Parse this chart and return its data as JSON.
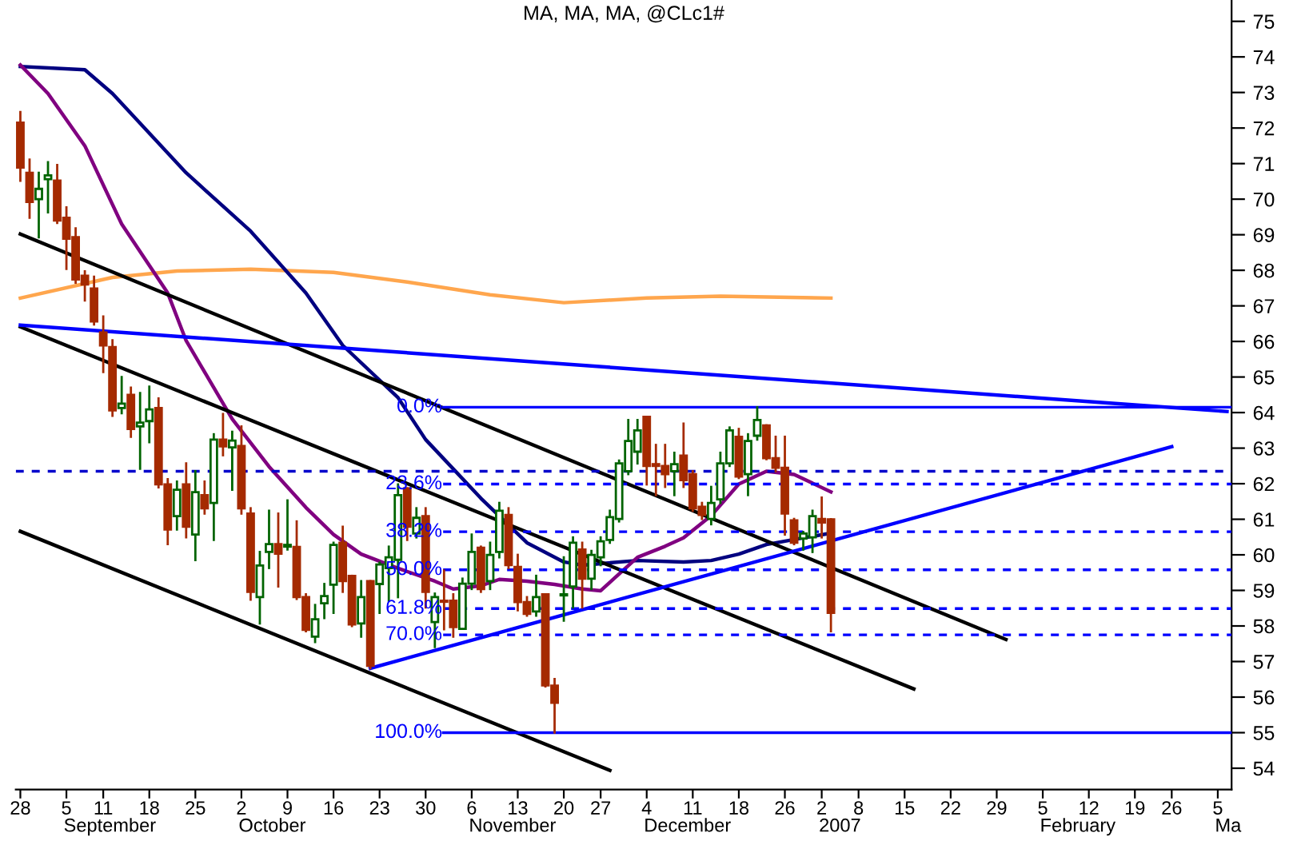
{
  "chart_data": {
    "type": "candlestick",
    "title": "MA, MA, MA, @CLc1#",
    "categories": [
      "28",
      null,
      null,
      null,
      null,
      "5",
      null,
      null,
      null,
      "11",
      null,
      null,
      null,
      null,
      "18",
      null,
      null,
      null,
      null,
      "25",
      null,
      null,
      null,
      null,
      "2",
      null,
      null,
      null,
      null,
      "9",
      null,
      null,
      null,
      null,
      "16",
      null,
      null,
      null,
      null,
      "23",
      null,
      null,
      null,
      null,
      "30",
      null,
      null,
      null,
      null,
      "6",
      null,
      null,
      null,
      null,
      "13",
      null,
      null,
      null,
      null,
      "20",
      null,
      null,
      null,
      "27",
      null,
      null,
      null,
      null,
      "4",
      null,
      null,
      null,
      null,
      "11",
      null,
      null,
      null,
      null,
      "18",
      null,
      null,
      null,
      null,
      "26",
      null,
      null,
      null,
      "2",
      null,
      null,
      null,
      "8",
      null,
      null,
      null,
      null,
      "15",
      null,
      null,
      null,
      null,
      "22",
      null,
      null,
      null,
      null,
      "29",
      null,
      null,
      null,
      null,
      "5",
      null,
      null,
      null,
      null,
      "12",
      null,
      null,
      null,
      null,
      "19",
      null,
      null,
      null,
      "26",
      null,
      null,
      null,
      null,
      "5",
      null
    ],
    "ohlc": [
      [
        72.15,
        72.45,
        70.52,
        70.89
      ],
      [
        70.74,
        71.11,
        69.48,
        69.92
      ],
      [
        70.0,
        70.74,
        68.93,
        70.29
      ],
      [
        70.56,
        71.04,
        69.63,
        70.67
      ],
      [
        70.52,
        70.96,
        69.33,
        69.4
      ],
      [
        69.48,
        69.77,
        68.04,
        68.89
      ],
      [
        68.93,
        69.18,
        67.65,
        67.74
      ],
      [
        67.85,
        67.97,
        67.15,
        67.6
      ],
      [
        67.49,
        67.82,
        66.48,
        66.56
      ],
      [
        66.25,
        66.7,
        65.14,
        65.89
      ],
      [
        65.84,
        66.03,
        63.91,
        64.06
      ],
      [
        64.13,
        65.0,
        63.98,
        64.25
      ],
      [
        64.5,
        64.7,
        63.32,
        63.54
      ],
      [
        63.61,
        64.55,
        62.42,
        63.72
      ],
      [
        63.76,
        64.73,
        63.17,
        64.09
      ],
      [
        64.13,
        64.4,
        61.9,
        61.98
      ],
      [
        61.98,
        62.13,
        60.3,
        60.71
      ],
      [
        61.09,
        62.06,
        60.71,
        61.83
      ],
      [
        61.98,
        62.57,
        60.49,
        60.79
      ],
      [
        60.57,
        62.35,
        59.85,
        61.76
      ],
      [
        61.68,
        62.06,
        61.16,
        61.31
      ],
      [
        61.46,
        63.39,
        60.42,
        63.24
      ],
      [
        63.24,
        63.96,
        62.8,
        63.05
      ],
      [
        63.02,
        63.46,
        61.83,
        63.21
      ],
      [
        63.06,
        63.61,
        61.16,
        61.31
      ],
      [
        61.16,
        61.31,
        58.74,
        58.96
      ],
      [
        58.81,
        60.08,
        58.07,
        59.7
      ],
      [
        60.08,
        61.24,
        59.63,
        60.3
      ],
      [
        60.3,
        61.16,
        59.11,
        60.03
      ],
      [
        60.23,
        61.53,
        60.15,
        60.28
      ],
      [
        60.22,
        60.94,
        58.76,
        58.81
      ],
      [
        58.81,
        58.89,
        57.85,
        57.89
      ],
      [
        57.7,
        58.59,
        57.55,
        58.19
      ],
      [
        58.64,
        59.18,
        58.22,
        58.84
      ],
      [
        59.16,
        60.34,
        58.37,
        60.28
      ],
      [
        60.34,
        60.79,
        58.96,
        59.26
      ],
      [
        59.41,
        59.41,
        58.0,
        58.04
      ],
      [
        58.07,
        59.26,
        57.7,
        58.81
      ],
      [
        59.26,
        59.26,
        56.81,
        56.88
      ],
      [
        59.18,
        59.78,
        58.37,
        59.73
      ],
      [
        59.63,
        60.23,
        58.71,
        59.93
      ],
      [
        59.86,
        61.98,
        58.81,
        61.68
      ],
      [
        61.87,
        61.87,
        60.42,
        60.79
      ],
      [
        60.6,
        61.31,
        60.49,
        61.04
      ],
      [
        61.09,
        61.31,
        58.52,
        58.96
      ],
      [
        58.11,
        58.91,
        57.41,
        58.81
      ],
      [
        58.71,
        59.56,
        57.91,
        58.68
      ],
      [
        58.71,
        58.89,
        57.7,
        57.97
      ],
      [
        57.92,
        59.33,
        57.92,
        59.19
      ],
      [
        59.19,
        60.57,
        59.04,
        60.08
      ],
      [
        60.2,
        60.23,
        58.96,
        59.04
      ],
      [
        59.26,
        60.34,
        59.04,
        60.0
      ],
      [
        60.08,
        61.46,
        59.93,
        61.24
      ],
      [
        61.12,
        61.31,
        59.63,
        59.71
      ],
      [
        59.66,
        60.0,
        58.44,
        58.67
      ],
      [
        58.67,
        58.81,
        58.29,
        58.34
      ],
      [
        58.41,
        59.41,
        58.29,
        58.81
      ],
      [
        58.89,
        58.89,
        56.3,
        56.33
      ],
      [
        56.32,
        56.51,
        55.0,
        55.84
      ],
      [
        58.86,
        59.93,
        58.15,
        58.89
      ],
      [
        59.11,
        60.49,
        58.52,
        60.34
      ],
      [
        60.15,
        60.34,
        58.52,
        59.33
      ],
      [
        59.33,
        60.11,
        59.04,
        60.0
      ],
      [
        59.93,
        60.49,
        59.71,
        60.38
      ],
      [
        60.42,
        61.24,
        60.34,
        61.06
      ],
      [
        61.01,
        62.65,
        60.94,
        62.57
      ],
      [
        62.35,
        63.79,
        62.27,
        63.2
      ],
      [
        62.9,
        63.79,
        62.57,
        63.5
      ],
      [
        63.88,
        63.88,
        61.98,
        62.5
      ],
      [
        62.55,
        63.09,
        61.68,
        62.5
      ],
      [
        62.5,
        63.09,
        61.91,
        62.27
      ],
      [
        62.35,
        62.87,
        61.68,
        62.55
      ],
      [
        62.79,
        63.69,
        61.91,
        62.1
      ],
      [
        62.27,
        62.35,
        61.24,
        61.31
      ],
      [
        61.35,
        61.46,
        61.01,
        61.12
      ],
      [
        61.01,
        61.91,
        60.86,
        61.46
      ],
      [
        61.56,
        62.87,
        61.46,
        62.57
      ],
      [
        62.57,
        63.58,
        62.5,
        63.5
      ],
      [
        63.32,
        63.54,
        62.16,
        62.2
      ],
      [
        62.27,
        63.39,
        61.68,
        63.2
      ],
      [
        63.35,
        64.15,
        63.24,
        63.79
      ],
      [
        63.64,
        63.64,
        62.69,
        62.72
      ],
      [
        62.72,
        63.32,
        62.35,
        62.45
      ],
      [
        62.45,
        63.32,
        60.57,
        61.16
      ],
      [
        60.97,
        61.01,
        60.3,
        60.34
      ],
      [
        60.46,
        60.64,
        60.15,
        60.6
      ],
      [
        60.49,
        61.24,
        60.08,
        61.09
      ],
      [
        61.01,
        61.61,
        60.49,
        60.91
      ],
      [
        61.0,
        61.0,
        57.85,
        58.37
      ],
      null,
      null,
      null,
      null,
      null,
      null,
      null,
      null,
      null,
      null,
      null,
      null,
      null,
      null,
      null,
      null,
      null,
      null,
      null,
      null,
      null,
      null,
      null,
      null,
      null,
      null,
      null,
      null,
      null,
      null,
      null,
      null,
      null,
      null,
      null,
      null,
      null,
      null,
      null,
      null,
      null,
      null,
      null
    ],
    "series": [
      {
        "type": "line",
        "color": "#ffa64d",
        "values": [
          67.22,
          null,
          null,
          null,
          null,
          null,
          null,
          null,
          null,
          null,
          67.8,
          null,
          null,
          null,
          null,
          null,
          null,
          67.98,
          null,
          null,
          null,
          null,
          null,
          null,
          null,
          68.03,
          null,
          null,
          null,
          null,
          null,
          null,
          null,
          null,
          67.94,
          null,
          null,
          null,
          null,
          null,
          null,
          null,
          67.67,
          null,
          null,
          null,
          null,
          null,
          null,
          null,
          null,
          67.31,
          null,
          null,
          null,
          null,
          null,
          null,
          null,
          67.09,
          null,
          null,
          null,
          null,
          null,
          null,
          null,
          null,
          67.22,
          null,
          null,
          null,
          null,
          null,
          null,
          null,
          67.27,
          null,
          null,
          null,
          null,
          null,
          null,
          null,
          null,
          null,
          null,
          null,
          67.22,
          null,
          null,
          null,
          null,
          null,
          null,
          null,
          null,
          null,
          null,
          null,
          null,
          null,
          null,
          null,
          null,
          null,
          null,
          null,
          null,
          null,
          null,
          null,
          null,
          null,
          null,
          null,
          null,
          null,
          null,
          null,
          null,
          null,
          null,
          null,
          null,
          null,
          null,
          null,
          null,
          null,
          null,
          null
        ]
      },
      {
        "type": "line",
        "color": "#000080",
        "values": [
          73.73,
          null,
          null,
          null,
          null,
          null,
          null,
          73.64,
          null,
          null,
          72.97,
          null,
          null,
          null,
          null,
          null,
          null,
          null,
          70.74,
          null,
          null,
          null,
          null,
          null,
          null,
          69.1,
          null,
          null,
          null,
          null,
          null,
          67.36,
          null,
          null,
          null,
          65.89,
          null,
          null,
          null,
          null,
          null,
          64.42,
          null,
          null,
          63.24,
          null,
          null,
          null,
          null,
          null,
          61.59,
          null,
          null,
          null,
          null,
          60.34,
          null,
          null,
          null,
          59.8,
          null,
          59.71,
          null,
          null,
          null,
          null,
          null,
          59.84,
          null,
          null,
          null,
          null,
          59.8,
          null,
          null,
          59.84,
          null,
          null,
          60.02,
          null,
          null,
          60.29,
          null,
          null,
          60.43,
          null,
          null,
          null,
          60.61,
          null,
          null,
          null,
          null,
          null,
          null,
          null,
          null,
          null,
          null,
          null,
          null,
          null,
          null,
          null,
          null,
          null,
          null,
          null,
          null,
          null,
          null,
          null,
          null,
          null,
          null,
          null,
          null,
          null,
          null,
          null,
          null,
          null,
          null,
          null,
          null,
          null,
          null,
          null,
          null,
          null,
          null,
          null
        ]
      },
      {
        "type": "line",
        "color": "#800080",
        "values": [
          73.77,
          null,
          null,
          72.97,
          null,
          null,
          null,
          71.5,
          null,
          null,
          null,
          69.3,
          null,
          null,
          null,
          null,
          67.36,
          null,
          66.02,
          null,
          null,
          64.7,
          null,
          63.82,
          null,
          null,
          null,
          62.48,
          null,
          null,
          null,
          61.33,
          null,
          null,
          60.57,
          null,
          null,
          60.02,
          null,
          null,
          null,
          59.62,
          null,
          null,
          null,
          59.26,
          null,
          59.04,
          null,
          null,
          59.13,
          null,
          59.31,
          null,
          null,
          59.26,
          null,
          null,
          59.17,
          null,
          null,
          59.04,
          null,
          58.99,
          null,
          null,
          null,
          59.93,
          null,
          null,
          60.24,
          null,
          60.48,
          null,
          null,
          61.1,
          null,
          null,
          61.99,
          null,
          null,
          62.35,
          null,
          null,
          62.26,
          null,
          null,
          null,
          61.77,
          null,
          null,
          null,
          null,
          null,
          null,
          null,
          null,
          null,
          null,
          null,
          null,
          null,
          null,
          null,
          null,
          null,
          null,
          null,
          null,
          null,
          null,
          null,
          null,
          null,
          null,
          null,
          null,
          null,
          null,
          null,
          null,
          null,
          null,
          null,
          null,
          null,
          null,
          null,
          null,
          null,
          null,
          null
        ]
      },
      {
        "type": "line",
        "color": "#000000",
        "values": [
          69.02,
          null,
          null,
          null,
          null,
          null,
          null,
          null,
          null,
          null,
          null,
          null,
          null,
          null,
          null,
          null,
          null,
          null,
          null,
          null,
          null,
          null,
          null,
          null,
          null,
          null,
          null,
          null,
          null,
          null,
          null,
          null,
          null,
          null,
          null,
          null,
          null,
          null,
          null,
          null,
          null,
          null,
          null,
          null,
          null,
          null,
          null,
          null,
          null,
          null,
          null,
          null,
          null,
          null,
          null,
          null,
          null,
          null,
          null,
          null,
          null,
          null,
          null,
          null,
          null,
          null,
          null,
          null,
          null,
          null,
          null,
          null,
          null,
          null,
          null,
          null,
          null,
          null,
          null,
          null,
          null,
          null,
          null,
          null,
          null,
          null,
          null,
          null,
          null,
          null,
          null,
          null,
          null,
          null,
          null,
          null,
          null,
          null,
          null,
          null,
          null,
          null,
          null,
          null,
          null,
          null,
          null,
          57.62,
          null,
          null,
          null,
          null,
          null,
          null,
          null,
          null,
          null,
          null,
          null,
          null,
          null,
          null,
          null,
          null,
          null,
          null,
          null,
          null,
          null,
          null,
          null,
          null
        ]
      },
      {
        "type": "line",
        "color": "#000000",
        "values": [
          66.41,
          null,
          null,
          null,
          null,
          null,
          null,
          null,
          null,
          null,
          null,
          null,
          null,
          null,
          null,
          null,
          null,
          null,
          null,
          null,
          null,
          null,
          null,
          null,
          null,
          null,
          null,
          null,
          null,
          null,
          null,
          null,
          null,
          null,
          null,
          null,
          null,
          null,
          null,
          null,
          null,
          null,
          null,
          null,
          null,
          null,
          null,
          null,
          null,
          null,
          null,
          null,
          null,
          null,
          null,
          null,
          null,
          null,
          null,
          null,
          null,
          null,
          null,
          null,
          null,
          null,
          null,
          null,
          null,
          null,
          null,
          null,
          null,
          null,
          null,
          null,
          null,
          null,
          null,
          null,
          null,
          null,
          null,
          null,
          null,
          null,
          null,
          null,
          null,
          null,
          null,
          null,
          null,
          null,
          null,
          null,
          null,
          56.23,
          null,
          null,
          null,
          null,
          null,
          null,
          null,
          null,
          null,
          null,
          null,
          null,
          null,
          null,
          null,
          null,
          null,
          null,
          null,
          null,
          null,
          null,
          null,
          null,
          null,
          null,
          null,
          null,
          null,
          null,
          null,
          null,
          null,
          null
        ]
      },
      {
        "type": "line",
        "color": "#000000",
        "values": [
          60.66,
          null,
          null,
          null,
          null,
          null,
          null,
          null,
          null,
          null,
          null,
          null,
          null,
          null,
          null,
          null,
          null,
          null,
          null,
          null,
          null,
          null,
          null,
          null,
          null,
          null,
          null,
          null,
          null,
          null,
          null,
          null,
          null,
          null,
          null,
          null,
          null,
          null,
          null,
          null,
          null,
          null,
          null,
          null,
          null,
          null,
          null,
          null,
          null,
          null,
          null,
          null,
          null,
          null,
          null,
          null,
          null,
          null,
          null,
          null,
          null,
          null,
          null,
          null,
          53.94,
          null,
          null,
          null,
          null,
          null,
          null,
          null,
          null,
          null,
          null,
          null,
          null,
          null,
          null,
          null,
          null,
          null,
          null,
          null,
          null,
          null,
          null,
          null,
          null,
          null,
          null,
          null,
          null,
          null,
          null,
          null,
          null,
          null,
          null,
          null,
          null,
          null,
          null,
          null,
          null,
          null,
          null,
          null,
          null,
          null,
          null,
          null,
          null,
          null,
          null,
          null,
          null,
          null,
          null,
          null,
          null,
          null,
          null,
          null,
          null,
          null,
          null,
          null,
          null,
          null,
          null,
          null
        ]
      },
      {
        "type": "line",
        "color": "#0000ff",
        "values": [
          66.46,
          null,
          null,
          null,
          null,
          null,
          null,
          null,
          null,
          null,
          null,
          null,
          null,
          null,
          null,
          null,
          null,
          null,
          null,
          null,
          null,
          null,
          null,
          null,
          null,
          null,
          null,
          null,
          null,
          null,
          null,
          null,
          null,
          null,
          null,
          null,
          null,
          null,
          null,
          null,
          null,
          null,
          null,
          null,
          null,
          null,
          null,
          null,
          null,
          null,
          null,
          null,
          null,
          null,
          null,
          null,
          null,
          null,
          null,
          null,
          null,
          null,
          null,
          null,
          null,
          null,
          null,
          null,
          null,
          null,
          null,
          null,
          null,
          null,
          null,
          null,
          null,
          null,
          null,
          null,
          null,
          null,
          null,
          null,
          null,
          null,
          null,
          null,
          null,
          null,
          null,
          null,
          null,
          null,
          null,
          null,
          null,
          null,
          null,
          null,
          null,
          null,
          null,
          null,
          null,
          null,
          null,
          null,
          null,
          null,
          null,
          null,
          null,
          null,
          null,
          null,
          null,
          null,
          null,
          null,
          null,
          null,
          null,
          null,
          null,
          null,
          null,
          null,
          null,
          null,
          null,
          64.03
        ]
      },
      {
        "type": "line",
        "color": "#0000ff",
        "values": [
          null,
          null,
          null,
          null,
          null,
          null,
          null,
          null,
          null,
          null,
          null,
          null,
          null,
          null,
          null,
          null,
          null,
          null,
          null,
          null,
          null,
          null,
          null,
          null,
          null,
          null,
          null,
          null,
          null,
          null,
          null,
          null,
          null,
          null,
          null,
          null,
          null,
          null,
          56.81,
          null,
          null,
          null,
          null,
          null,
          null,
          null,
          null,
          null,
          null,
          null,
          null,
          null,
          null,
          null,
          null,
          null,
          null,
          null,
          null,
          null,
          null,
          null,
          null,
          null,
          null,
          null,
          null,
          null,
          null,
          null,
          null,
          null,
          null,
          null,
          null,
          null,
          null,
          null,
          null,
          null,
          null,
          null,
          null,
          null,
          null,
          null,
          null,
          null,
          null,
          null,
          null,
          null,
          null,
          null,
          null,
          null,
          null,
          null,
          null,
          null,
          null,
          null,
          null,
          null,
          null,
          null,
          null,
          null,
          null,
          null,
          null,
          null,
          null,
          null,
          null,
          null,
          null,
          null,
          null,
          null,
          null,
          null,
          null,
          null,
          null,
          63.04,
          null,
          null,
          null,
          null,
          null,
          null
        ]
      }
    ],
    "ref_lines": [
      {
        "axis": "y",
        "value": 64.15,
        "color": "#0000ff",
        "line_style": "solid"
      },
      {
        "axis": "y",
        "value": 61.99,
        "color": "#0000ff",
        "line_style": "dashed"
      },
      {
        "axis": "y",
        "value": 60.65,
        "color": "#0000ff",
        "line_style": "dashed"
      },
      {
        "axis": "y",
        "value": 59.58,
        "color": "#0000ff",
        "line_style": "dashed"
      },
      {
        "axis": "y",
        "value": 58.49,
        "color": "#0000ff",
        "line_style": "dashed"
      },
      {
        "axis": "y",
        "value": 57.75,
        "color": "#0000ff",
        "line_style": "dashed"
      },
      {
        "axis": "y",
        "value": 55.0,
        "color": "#0000ff",
        "line_style": "solid"
      },
      {
        "axis": "y",
        "value": 62.35,
        "color": "#0000cc",
        "line_style": "dashed"
      }
    ],
    "annotations": [
      "September",
      "October",
      "November",
      "December",
      "2007",
      "February",
      "Ma",
      "0.0%",
      "23.6%",
      "38.2%",
      "50.0%",
      "61.8%",
      "70.0%",
      "100.0%"
    ],
    "ylim": [
      53.4,
      75.6
    ],
    "yticks": [
      54,
      55,
      56,
      57,
      58,
      59,
      60,
      61,
      62,
      63,
      64,
      65,
      66,
      67,
      68,
      69,
      70,
      71,
      72,
      73,
      74,
      75
    ]
  }
}
